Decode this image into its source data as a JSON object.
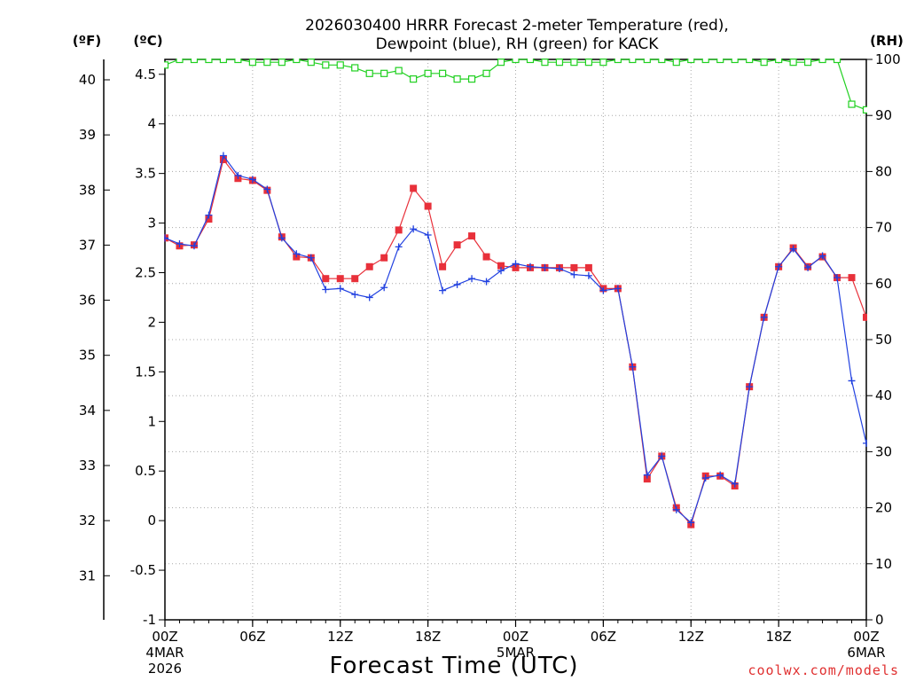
{
  "title_line1": "2026030400 HRRR Forecast 2-meter Temperature (red),",
  "title_line2": "Dewpoint (blue), RH (green) for KACK",
  "credit": "coolwx.com/models",
  "colors": {
    "temperature": "#e8303a",
    "dewpoint": "#2040e0",
    "rh": "#20d020",
    "grid": "#a8a8a8"
  },
  "chart_data": {
    "type": "line",
    "xlabel": "Forecast Time (UTC)",
    "units": {
      "left_f": "(ºF)",
      "left_c": "(ºC)",
      "right": "(RH)"
    },
    "x_hours": {
      "start": 0,
      "end": 48,
      "step": 1
    },
    "x_ticks": [
      {
        "hour": 0,
        "label": "00Z",
        "sub1": "4MAR",
        "sub2": "2026"
      },
      {
        "hour": 6,
        "label": "06Z"
      },
      {
        "hour": 12,
        "label": "12Z"
      },
      {
        "hour": 18,
        "label": "18Z"
      },
      {
        "hour": 24,
        "label": "00Z",
        "sub1": "5MAR"
      },
      {
        "hour": 30,
        "label": "06Z"
      },
      {
        "hour": 36,
        "label": "12Z"
      },
      {
        "hour": 42,
        "label": "18Z"
      },
      {
        "hour": 48,
        "label": "00Z",
        "sub1": "6MAR"
      }
    ],
    "ylim_c": [
      -1,
      4.65
    ],
    "yticks_c": [
      "-1",
      "-0.5",
      "0",
      "0.5",
      "1",
      "1.5",
      "2",
      "2.5",
      "3",
      "3.5",
      "4",
      "4.5"
    ],
    "yticks_f": [
      "31",
      "32",
      "33",
      "34",
      "35",
      "36",
      "37",
      "38",
      "39",
      "40"
    ],
    "ylim_rh": [
      0,
      100
    ],
    "yticks_rh": [
      "0",
      "10",
      "20",
      "30",
      "40",
      "50",
      "60",
      "70",
      "80",
      "90",
      "100"
    ],
    "grid": true,
    "series": [
      {
        "key": "temperature",
        "values": [
          2.85,
          2.77,
          2.78,
          3.04,
          3.64,
          3.45,
          3.43,
          3.33,
          2.86,
          2.66,
          2.65,
          2.44,
          2.44,
          2.44,
          2.56,
          2.65,
          2.93,
          3.35,
          3.17,
          2.56,
          2.78,
          2.87,
          2.66,
          2.57,
          2.55,
          2.55,
          2.55,
          2.55,
          2.55,
          2.55,
          2.34,
          2.34,
          1.55,
          0.42,
          0.65,
          0.13,
          -0.04,
          0.45,
          0.45,
          0.35,
          1.35,
          2.05,
          2.56,
          2.75,
          2.56,
          2.66,
          2.45,
          2.45,
          2.05
        ]
      },
      {
        "key": "dewpoint",
        "values": [
          2.85,
          2.79,
          2.77,
          3.08,
          3.68,
          3.48,
          3.44,
          3.34,
          2.85,
          2.69,
          2.65,
          2.33,
          2.34,
          2.28,
          2.25,
          2.35,
          2.76,
          2.94,
          2.88,
          2.32,
          2.38,
          2.44,
          2.41,
          2.52,
          2.59,
          2.56,
          2.55,
          2.54,
          2.48,
          2.47,
          2.32,
          2.34,
          1.55,
          0.46,
          0.65,
          0.11,
          -0.02,
          0.43,
          0.46,
          0.37,
          1.35,
          2.05,
          2.56,
          2.74,
          2.55,
          2.67,
          2.45,
          1.41,
          0.78
        ]
      },
      {
        "key": "rh",
        "values": [
          99,
          100,
          100,
          100,
          100,
          100,
          99.5,
          99.5,
          99.5,
          100,
          99.5,
          99,
          99,
          98.5,
          97.5,
          97.5,
          98,
          96.5,
          97.5,
          97.5,
          96.5,
          96.5,
          97.5,
          99.5,
          100,
          100,
          99.5,
          99.5,
          99.5,
          99.5,
          99.5,
          100,
          100,
          100,
          100,
          99.5,
          100,
          100,
          100,
          100,
          100,
          99.5,
          100,
          99.5,
          99.5,
          100,
          100,
          92,
          91
        ]
      }
    ]
  }
}
